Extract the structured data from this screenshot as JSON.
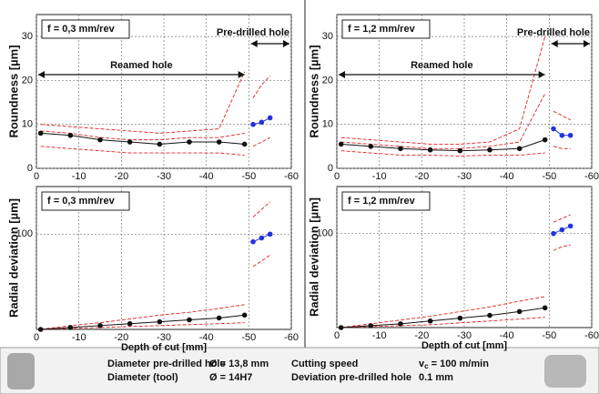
{
  "chart_data": [
    {
      "type": "line",
      "annotation": "f = 0,3 mm/rev",
      "ylabel": "Roundness [µm]",
      "reamed_label": "Reamed hole",
      "predrilled_label": "Pre-drilled hole",
      "xlim": [
        0,
        -60
      ],
      "xticks": [
        0,
        -10,
        -20,
        -30,
        -40,
        -50,
        -60
      ],
      "ylim": [
        0,
        35
      ],
      "yticks": [
        0,
        10,
        20,
        30
      ],
      "grid": true,
      "series": [
        {
          "color": "#e02020",
          "dashed": true,
          "x": [
            -1,
            -8,
            -15,
            -22,
            -29,
            -36,
            -43,
            -49
          ],
          "values": [
            10,
            9.5,
            9,
            8.5,
            8,
            8.5,
            9,
            22
          ]
        },
        {
          "color": "#e02020",
          "dashed": true,
          "x": [
            -1,
            -8,
            -15,
            -22,
            -29,
            -36,
            -43,
            -49
          ],
          "values": [
            8.5,
            8,
            7,
            6.5,
            6.5,
            7,
            7,
            8
          ]
        },
        {
          "color": "#e02020",
          "dashed": true,
          "x": [
            -1,
            -8,
            -15,
            -22,
            -29,
            -36,
            -43,
            -49
          ],
          "values": [
            5,
            4.5,
            4,
            3.5,
            3.5,
            3.5,
            3.5,
            3
          ]
        },
        {
          "color": "#e02020",
          "dashed": true,
          "x": [
            -51,
            -53,
            -55
          ],
          "values": [
            16,
            19,
            21
          ]
        },
        {
          "color": "#e02020",
          "dashed": true,
          "x": [
            -51,
            -53,
            -55
          ],
          "values": [
            5,
            6,
            7
          ]
        },
        {
          "color": "#111111",
          "marker": true,
          "x": [
            -1,
            -8,
            -15,
            -22,
            -29,
            -36,
            -43,
            -49
          ],
          "values": [
            8,
            7.5,
            6.5,
            6,
            5.5,
            6,
            6,
            5.5
          ]
        },
        {
          "color": "#2233dd",
          "marker": true,
          "x": [
            -51,
            -53,
            -55
          ],
          "values": [
            10,
            10.5,
            11.5
          ]
        }
      ]
    },
    {
      "type": "line",
      "annotation": "f = 1,2 mm/rev",
      "ylabel": "Roundness [µm]",
      "reamed_label": "Reamed hole",
      "predrilled_label": "Pre-drilled hole",
      "xlim": [
        0,
        -60
      ],
      "xticks": [
        0,
        -10,
        -20,
        -30,
        -40,
        -50,
        -60
      ],
      "ylim": [
        0,
        35
      ],
      "yticks": [
        0,
        10,
        20,
        30
      ],
      "grid": true,
      "series": [
        {
          "color": "#e02020",
          "dashed": true,
          "x": [
            -1,
            -8,
            -15,
            -22,
            -29,
            -36,
            -43,
            -49
          ],
          "values": [
            7,
            6.5,
            6,
            5.5,
            5.5,
            6,
            9,
            30
          ]
        },
        {
          "color": "#e02020",
          "dashed": true,
          "x": [
            -1,
            -8,
            -15,
            -22,
            -29,
            -36,
            -43,
            -49
          ],
          "values": [
            6,
            5.5,
            5,
            4.5,
            4.5,
            5,
            6,
            17
          ]
        },
        {
          "color": "#e02020",
          "dashed": true,
          "x": [
            -1,
            -8,
            -15,
            -22,
            -29,
            -36,
            -43,
            -49
          ],
          "values": [
            4,
            3.5,
            3,
            3,
            2.8,
            3,
            3,
            3.5
          ]
        },
        {
          "color": "#e02020",
          "dashed": true,
          "x": [
            -51,
            -53,
            -55
          ],
          "values": [
            13,
            12,
            11
          ]
        },
        {
          "color": "#e02020",
          "dashed": true,
          "x": [
            -51,
            -53,
            -55
          ],
          "values": [
            5,
            4.5,
            4.5
          ]
        },
        {
          "color": "#111111",
          "marker": true,
          "x": [
            -1,
            -8,
            -15,
            -22,
            -29,
            -36,
            -43,
            -49
          ],
          "values": [
            5.5,
            5,
            4.5,
            4.2,
            4,
            4.2,
            4.5,
            6.5
          ]
        },
        {
          "color": "#2233dd",
          "marker": true,
          "x": [
            -51,
            -53,
            -55
          ],
          "values": [
            9,
            7.5,
            7.5
          ]
        }
      ]
    },
    {
      "type": "line",
      "annotation": "f = 0,3 mm/rev",
      "ylabel": "Radial deviation [µm]",
      "xlabel": "Depth of cut [mm]",
      "xlim": [
        0,
        -60
      ],
      "xticks": [
        0,
        -10,
        -20,
        -30,
        -40,
        -50,
        -60
      ],
      "ylim": [
        0,
        150
      ],
      "yticks": [
        100
      ],
      "grid": true,
      "series": [
        {
          "color": "#e02020",
          "dashed": true,
          "x": [
            -1,
            -8,
            -15,
            -22,
            -29,
            -36,
            -43,
            -49
          ],
          "values": [
            0,
            4,
            7,
            11,
            15,
            18,
            22,
            26
          ]
        },
        {
          "color": "#e02020",
          "dashed": true,
          "x": [
            -1,
            -8,
            -15,
            -22,
            -29,
            -36,
            -43,
            -49
          ],
          "values": [
            0,
            1,
            2,
            3,
            4,
            5,
            6,
            7
          ]
        },
        {
          "color": "#e02020",
          "dashed": true,
          "x": [
            -51,
            -53,
            -55
          ],
          "values": [
            118,
            126,
            134
          ]
        },
        {
          "color": "#e02020",
          "dashed": true,
          "x": [
            -51,
            -53,
            -55
          ],
          "values": [
            66,
            72,
            78
          ]
        },
        {
          "color": "#111111",
          "marker": true,
          "x": [
            -1,
            -8,
            -15,
            -22,
            -29,
            -36,
            -43,
            -49
          ],
          "values": [
            0,
            2,
            4,
            6,
            8,
            10,
            12,
            15
          ]
        },
        {
          "color": "#2233dd",
          "marker": true,
          "x": [
            -51,
            -53,
            -55
          ],
          "values": [
            92,
            96,
            100
          ]
        }
      ]
    },
    {
      "type": "line",
      "annotation": "f = 1,2 mm/rev",
      "ylabel": "Radial deviation [µm]",
      "xlabel": "Depth of cut [mm]",
      "xlim": [
        0,
        -60
      ],
      "xticks": [
        0,
        -10,
        -20,
        -30,
        -40,
        -50,
        -60
      ],
      "ylim": [
        0,
        150
      ],
      "yticks": [
        100
      ],
      "grid": true,
      "series": [
        {
          "color": "#e02020",
          "dashed": true,
          "x": [
            -1,
            -8,
            -15,
            -22,
            -29,
            -36,
            -43,
            -49
          ],
          "values": [
            0,
            4,
            8,
            12,
            17,
            22,
            28,
            33
          ]
        },
        {
          "color": "#e02020",
          "dashed": true,
          "x": [
            -1,
            -8,
            -15,
            -22,
            -29,
            -36,
            -43,
            -49
          ],
          "values": [
            0,
            1,
            2,
            3,
            5,
            7,
            9,
            11
          ]
        },
        {
          "color": "#e02020",
          "dashed": true,
          "x": [
            -51,
            -53,
            -55
          ],
          "values": [
            112,
            116,
            120
          ]
        },
        {
          "color": "#e02020",
          "dashed": true,
          "x": [
            -51,
            -53,
            -55
          ],
          "values": [
            82,
            86,
            88
          ]
        },
        {
          "color": "#111111",
          "marker": true,
          "x": [
            -1,
            -8,
            -15,
            -22,
            -29,
            -36,
            -43,
            -49
          ],
          "values": [
            0,
            2,
            4,
            7,
            10,
            13,
            17,
            21
          ]
        },
        {
          "color": "#2233dd",
          "marker": true,
          "x": [
            -51,
            -53,
            -55
          ],
          "values": [
            100,
            104,
            108
          ]
        }
      ]
    }
  ],
  "footer": {
    "d1_label": "Diameter pre-drilled hole",
    "d1_value": "Ø = 13,8 mm",
    "d2_label": "Diameter (tool)",
    "d2_value": "Ø = 14H7",
    "speed_label": "Cutting speed",
    "speed_symbol": "v",
    "speed_sub": "c",
    "speed_value": " = 100 m/min",
    "dev_label": "Deviation pre-drilled hole",
    "dev_value": "0.1 mm"
  }
}
